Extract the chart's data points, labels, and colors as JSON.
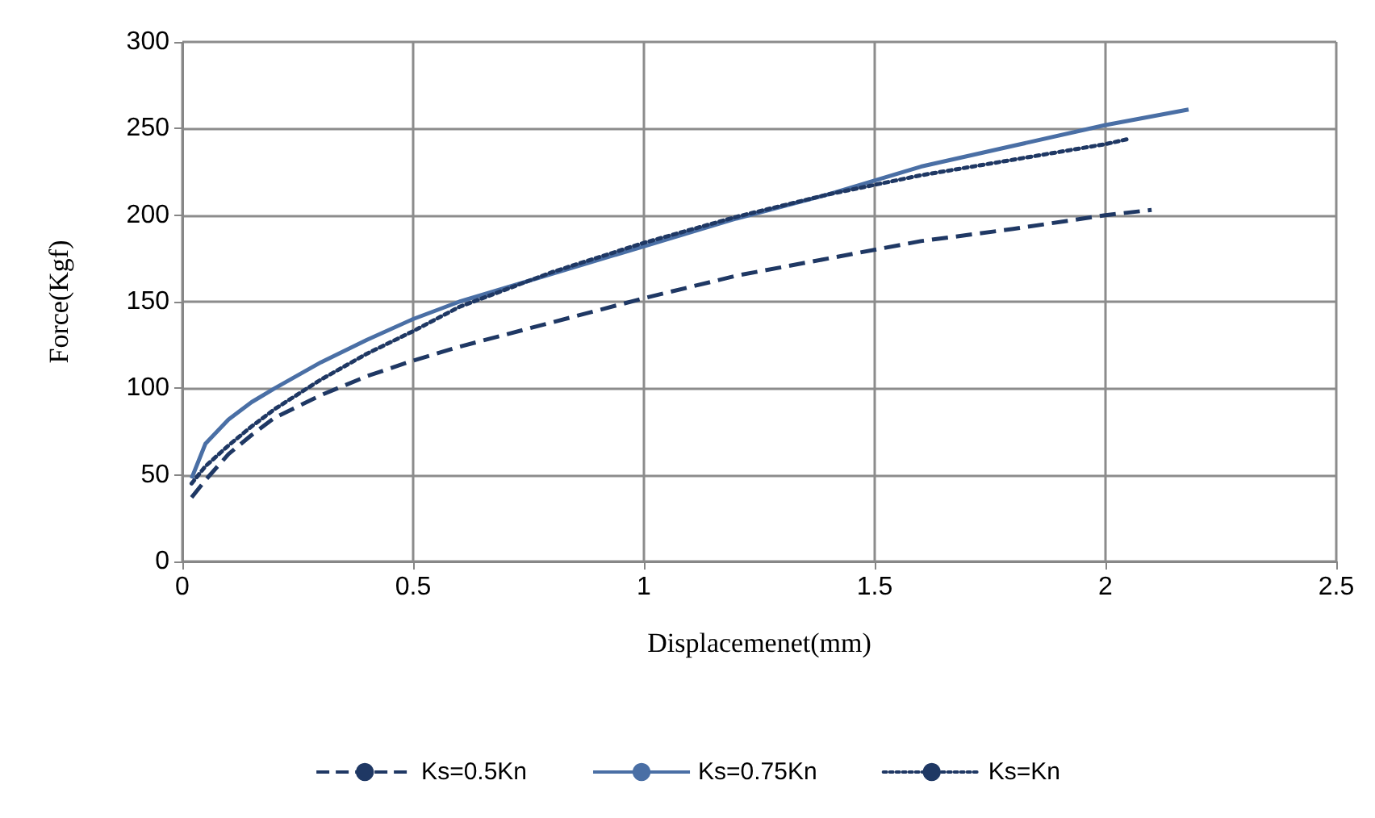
{
  "chart_data": {
    "type": "line",
    "xlabel": "Displacemenet(mm)",
    "ylabel": "Force(Kgf)",
    "xlim": [
      0,
      2.5
    ],
    "xticks": [
      0,
      0.5,
      1,
      1.5,
      2,
      2.5
    ],
    "ylim": [
      0,
      300
    ],
    "yticks": [
      0,
      50,
      100,
      150,
      200,
      250,
      300
    ],
    "grid": true,
    "legend": "bottom",
    "marker": "none",
    "series": [
      {
        "name": "Ks=0.5Kn",
        "color": "#1f3864",
        "line_style": "dashed",
        "x": [
          0.02,
          0.05,
          0.1,
          0.15,
          0.2,
          0.3,
          0.4,
          0.5,
          0.6,
          0.8,
          1.0,
          1.2,
          1.4,
          1.6,
          1.8,
          2.0,
          2.1
        ],
        "values": [
          37,
          47,
          62,
          73,
          83,
          96,
          107,
          116,
          124,
          138,
          152,
          165,
          175,
          185,
          192,
          200,
          203
        ]
      },
      {
        "name": "Ks=0.75Kn",
        "color": "#4a6fa5",
        "line_style": "solid",
        "x": [
          0.02,
          0.05,
          0.1,
          0.15,
          0.2,
          0.3,
          0.4,
          0.5,
          0.6,
          0.8,
          1.0,
          1.2,
          1.4,
          1.6,
          1.8,
          2.0,
          2.18
        ],
        "values": [
          48,
          68,
          82,
          92,
          100,
          115,
          128,
          140,
          150,
          166,
          182,
          198,
          212,
          228,
          240,
          252,
          261
        ]
      },
      {
        "name": "Ks=Kn",
        "color": "#1f3864",
        "line_style": "dotted",
        "x": [
          0.02,
          0.05,
          0.1,
          0.15,
          0.2,
          0.3,
          0.4,
          0.5,
          0.6,
          0.8,
          1.0,
          1.2,
          1.4,
          1.6,
          1.8,
          2.0,
          2.05
        ],
        "values": [
          45,
          55,
          67,
          78,
          88,
          105,
          120,
          133,
          147,
          167,
          184,
          199,
          212,
          223,
          232,
          241,
          244
        ]
      }
    ]
  }
}
